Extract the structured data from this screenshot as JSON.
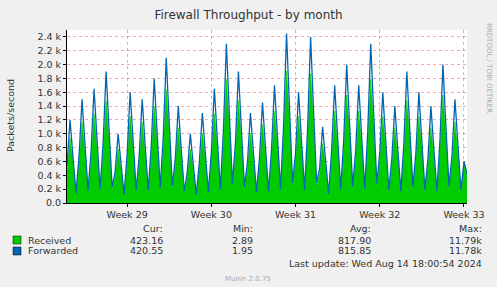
{
  "chart_data": {
    "type": "line",
    "title": "Firewall Throughput - by month",
    "y_label": "Packets/second",
    "categories": [
      null,
      null,
      null,
      null,
      null,
      null,
      null,
      null,
      null,
      null,
      null,
      null,
      null,
      null,
      null,
      null,
      null,
      null,
      null,
      null,
      "Week 29",
      null,
      null,
      null,
      null,
      null,
      null,
      null,
      null,
      null,
      null,
      null,
      null,
      null,
      null,
      null,
      null,
      null,
      null,
      null,
      null,
      null,
      null,
      null,
      null,
      null,
      null,
      null,
      "Week 30",
      null,
      null,
      null,
      null,
      null,
      null,
      null,
      null,
      null,
      null,
      null,
      null,
      null,
      null,
      null,
      null,
      null,
      null,
      null,
      null,
      null,
      null,
      null,
      null,
      null,
      null,
      null,
      "Week 31",
      null,
      null,
      null,
      null,
      null,
      null,
      null,
      null,
      null,
      null,
      null,
      null,
      null,
      null,
      null,
      null,
      null,
      null,
      null,
      null,
      null,
      null,
      null,
      null,
      null,
      null,
      null,
      "Week 32",
      null,
      null,
      null,
      null,
      null,
      null,
      null,
      null,
      null,
      null,
      null,
      null,
      null,
      null,
      null,
      null,
      null,
      null,
      null,
      null,
      null,
      null,
      null,
      null,
      null,
      null,
      null,
      "Week 33",
      null
    ],
    "series": [
      {
        "name": "Received",
        "color": "#00CC00",
        "type": "area",
        "cur": "423.16",
        "min": "2.89",
        "avg": "817.90",
        "max": "11.79k",
        "values": [
          460,
          940,
          580,
          120,
          570,
          1170,
          720,
          150,
          630,
          1290,
          790,
          170,
          720,
          1480,
          910,
          190,
          380,
          780,
          480,
          100,
          610,
          1250,
          770,
          160,
          570,
          1170,
          720,
          150,
          680,
          1400,
          860,
          180,
          800,
          1640,
          1010,
          210,
          530,
          1090,
          670,
          140,
          380,
          780,
          480,
          100,
          490,
          1010,
          620,
          130,
          630,
          1290,
          790,
          170,
          870,
          1790,
          1100,
          230,
          720,
          1480,
          910,
          190,
          490,
          1010,
          620,
          130,
          550,
          1130,
          700,
          150,
          650,
          1330,
          820,
          170,
          930,
          1910,
          1180,
          250,
          610,
          1250,
          770,
          160,
          910,
          1870,
          1150,
          240,
          420,
          860,
          530,
          110,
          650,
          1330,
          820,
          170,
          760,
          1560,
          960,
          200,
          650,
          1330,
          820,
          170,
          870,
          1790,
          1100,
          230,
          610,
          1250,
          770,
          160,
          530,
          1090,
          670,
          140,
          720,
          1480,
          910,
          190,
          610,
          1250,
          770,
          160,
          530,
          1090,
          670,
          140,
          760,
          1560,
          960,
          200,
          570,
          1170,
          720,
          150,
          590,
          423.16
        ]
      },
      {
        "name": "Forwarded",
        "color": "#0066B3",
        "type": "line",
        "cur": "420.55",
        "min": "1.95",
        "avg": "815.85",
        "max": "11.78k",
        "values": [
          540,
          1200,
          660,
          140,
          680,
          1500,
          830,
          180,
          740,
          1650,
          910,
          200,
          860,
          1900,
          1050,
          230,
          450,
          1000,
          550,
          120,
          720,
          1600,
          880,
          190,
          680,
          1500,
          830,
          180,
          810,
          1800,
          990,
          220,
          950,
          2100,
          1160,
          250,
          630,
          1400,
          770,
          170,
          450,
          1000,
          550,
          120,
          590,
          1300,
          720,
          160,
          740,
          1650,
          910,
          200,
          1040,
          2300,
          1270,
          280,
          860,
          1900,
          1050,
          230,
          590,
          1300,
          720,
          160,
          650,
          1450,
          800,
          170,
          770,
          1700,
          940,
          200,
          1100,
          2450,
          1350,
          290,
          720,
          1600,
          880,
          190,
          1080,
          2400,
          1320,
          290,
          500,
          1100,
          610,
          130,
          770,
          1700,
          940,
          200,
          900,
          2000,
          1100,
          240,
          770,
          1700,
          940,
          200,
          1040,
          2300,
          1270,
          280,
          720,
          1600,
          880,
          190,
          630,
          1400,
          770,
          170,
          860,
          1900,
          1050,
          230,
          720,
          1600,
          880,
          190,
          630,
          1400,
          770,
          170,
          900,
          2000,
          1100,
          240,
          680,
          1500,
          830,
          180,
          600,
          420.55
        ]
      }
    ],
    "legend_columns": [
      "Cur:",
      "Min:",
      "Avg:",
      "Max:"
    ],
    "ylim": [
      0,
      2500
    ],
    "yticks": [
      {
        "value": 0,
        "label": "0.0"
      },
      {
        "value": 200,
        "label": "0.2 k"
      },
      {
        "value": 400,
        "label": "0.4 k"
      },
      {
        "value": 600,
        "label": "0.6 k"
      },
      {
        "value": 800,
        "label": "0.8 k"
      },
      {
        "value": 1000,
        "label": "1.0 k"
      },
      {
        "value": 1200,
        "label": "1.2 k"
      },
      {
        "value": 1400,
        "label": "1.4 k"
      },
      {
        "value": 1600,
        "label": "1.6 k"
      },
      {
        "value": 1800,
        "label": "1.8 k"
      },
      {
        "value": 2000,
        "label": "2.0 k"
      },
      {
        "value": 2200,
        "label": "2.2 k"
      },
      {
        "value": 2400,
        "label": "2.4 k"
      }
    ],
    "grid": true,
    "last_update": "Last update: Wed Aug 14 18:00:54 2024",
    "footer": "Munin 2.0.75",
    "watermark": "RRDTOOL / TOBI OETIKER"
  }
}
